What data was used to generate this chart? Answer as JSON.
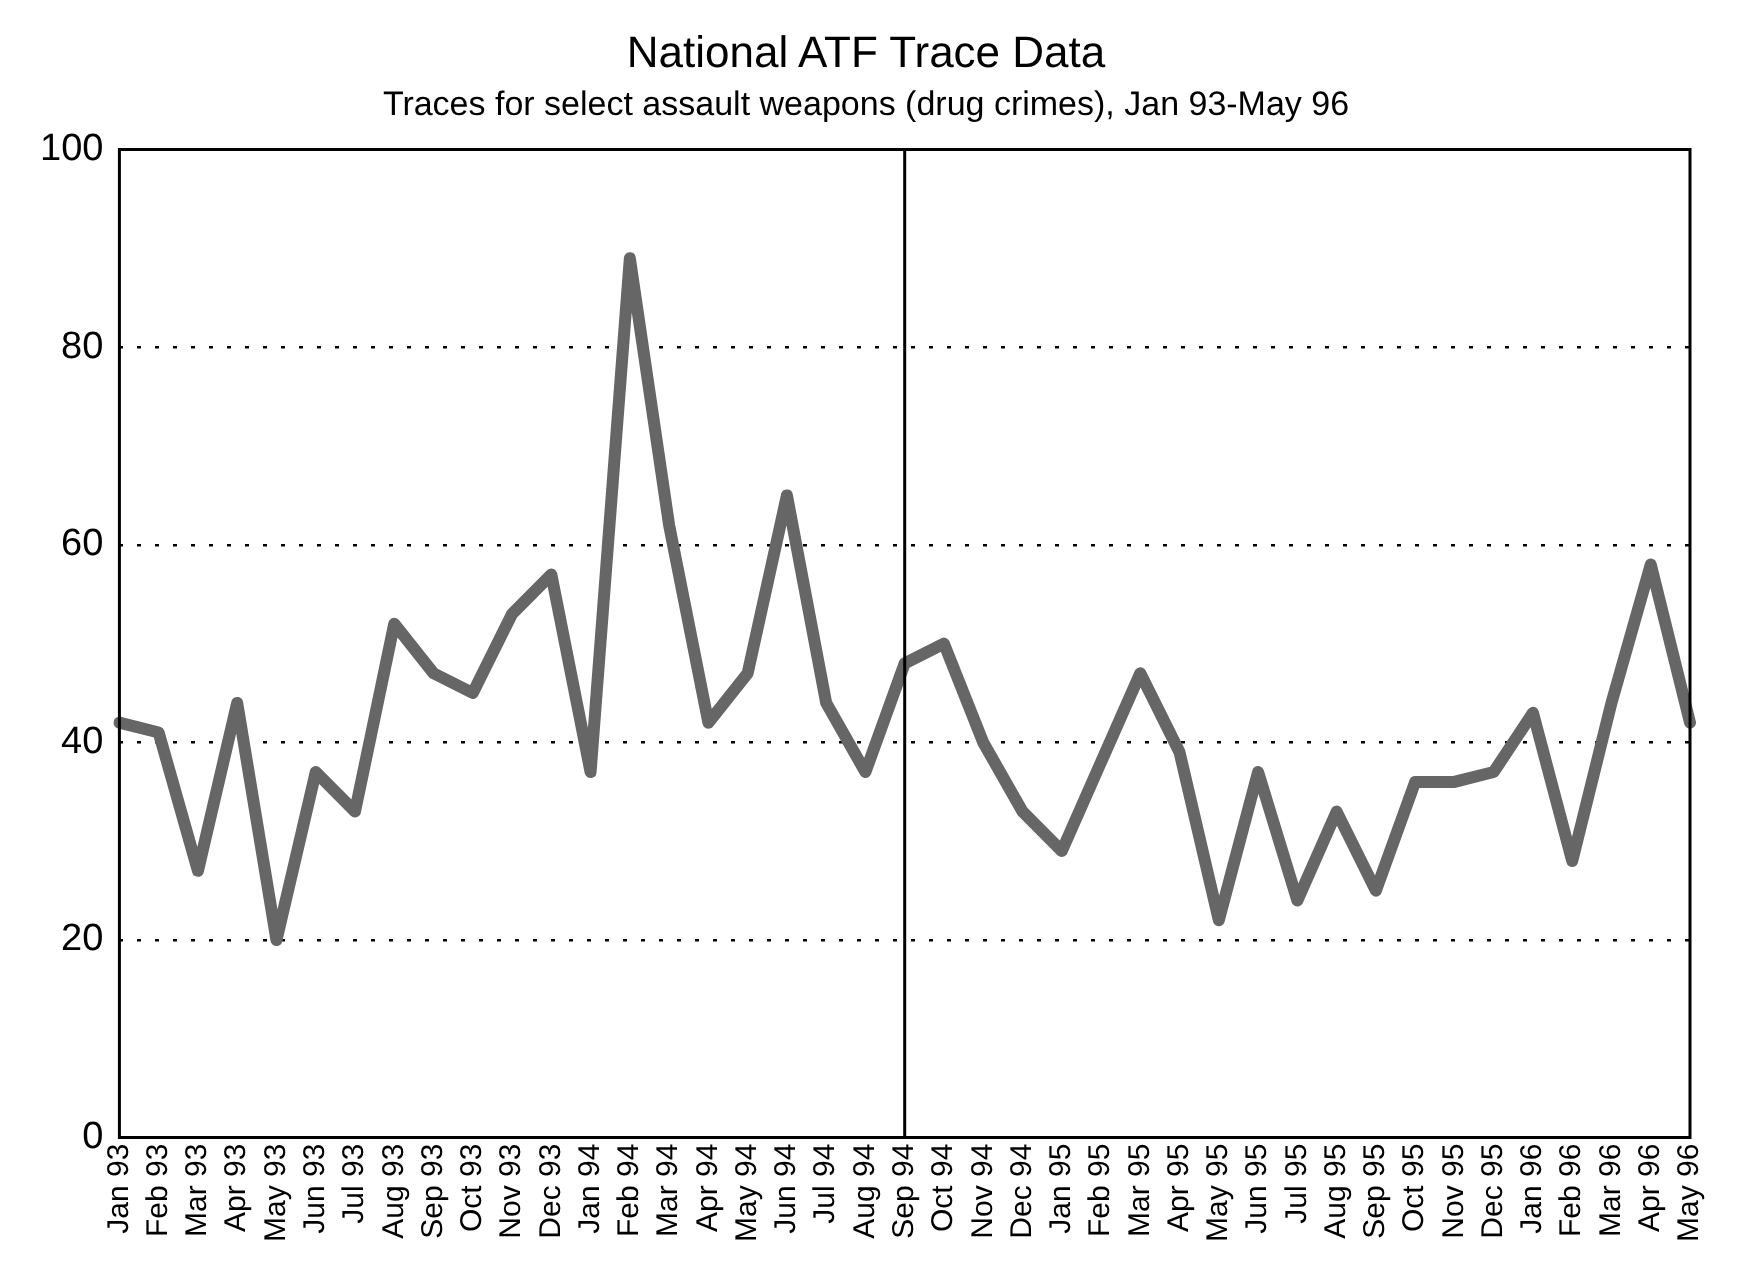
{
  "chart_data": {
    "type": "line",
    "title": "National ATF Trace Data",
    "subtitle": "Traces for select assault weapons (drug crimes), Jan 93-May 96",
    "categories": [
      "Jan 93",
      "Feb 93",
      "Mar 93",
      "Apr 93",
      "May 93",
      "Jun 93",
      "Jul 93",
      "Aug 93",
      "Sep 93",
      "Oct 93",
      "Nov 93",
      "Dec 93",
      "Jan 94",
      "Feb 94",
      "Mar 94",
      "Apr 94",
      "May 94",
      "Jun 94",
      "Jul 94",
      "Aug 94",
      "Sep 94",
      "Oct 94",
      "Nov 94",
      "Dec 94",
      "Jan 95",
      "Feb 95",
      "Mar 95",
      "Apr 95",
      "May 95",
      "Jun 95",
      "Jul 95",
      "Aug 95",
      "Sep 95",
      "Oct 95",
      "Nov 95",
      "Dec 95",
      "Jan 96",
      "Feb 96",
      "Mar 96",
      "Apr 96",
      "May 96"
    ],
    "series": [
      {
        "color": "#666666",
        "values": [
          42,
          41,
          27,
          44,
          20,
          37,
          33,
          52,
          47,
          45,
          53,
          57,
          37,
          89,
          62,
          42,
          47,
          65,
          44,
          37,
          48,
          50,
          40,
          33,
          29,
          38,
          47,
          39,
          22,
          37,
          24,
          33,
          25,
          36,
          36,
          37,
          43,
          28,
          44,
          58,
          42
        ]
      }
    ],
    "ylim": [
      0,
      100
    ],
    "yticks": [
      0,
      20,
      40,
      60,
      80,
      100
    ],
    "grid": "y",
    "legend": false,
    "marker": "none",
    "line_style": "solid",
    "ref_lines": [
      {
        "axis": "x",
        "value": "Sep 94",
        "color": "#000000"
      }
    ]
  }
}
